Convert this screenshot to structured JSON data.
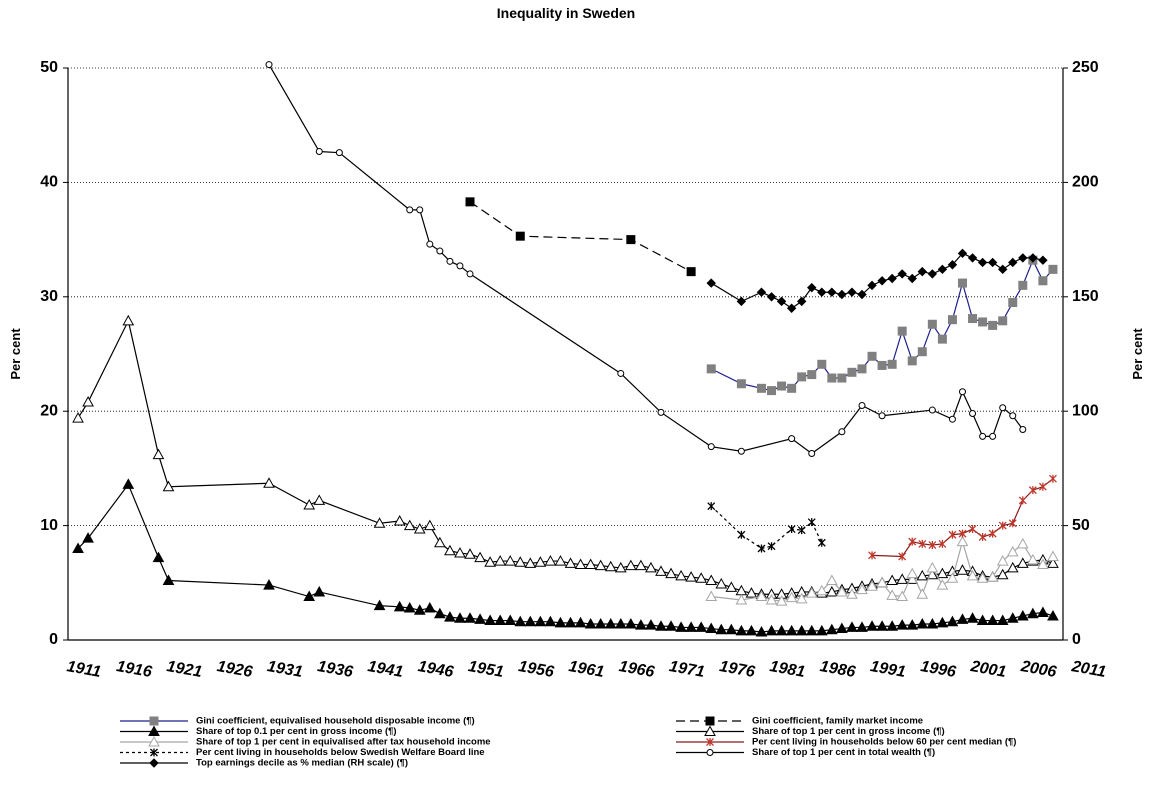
{
  "chart_data": {
    "type": "line",
    "title": "Inequality in Sweden",
    "y_label": "Per cent",
    "y2_label": "Per cent",
    "xlim": [
      1910,
      2009
    ],
    "xticks": [
      1911,
      1916,
      1921,
      1926,
      1931,
      1936,
      1941,
      1946,
      1951,
      1956,
      1961,
      1966,
      1971,
      1976,
      1981,
      1986,
      1991,
      1996,
      2001,
      2006,
      2011
    ],
    "ylim": [
      0,
      50
    ],
    "yticks": [
      0,
      10,
      20,
      30,
      40,
      50
    ],
    "y2lim": [
      0,
      250
    ],
    "y2ticks": [
      0,
      50,
      100,
      150,
      200,
      250
    ],
    "grid": true,
    "series": [
      {
        "name": "Gini coefficient,  equivalised household  disposable  income (¶)",
        "color": "#1f1f8f",
        "marker": "square",
        "marker_fill": "#808080",
        "marker_stroke": "#808080",
        "x": [
          1974,
          1977,
          1979,
          1980,
          1981,
          1982,
          1983,
          1984,
          1985,
          1986,
          1987,
          1988,
          1989,
          1990,
          1991,
          1992,
          1993,
          1994,
          1995,
          1996,
          1997,
          1998,
          1999,
          2000,
          2001,
          2002,
          2003,
          2004,
          2005,
          2006,
          2007,
          2008
        ],
        "values": [
          23.7,
          22.4,
          22.0,
          21.8,
          22.2,
          22.0,
          23.0,
          23.2,
          24.1,
          22.9,
          22.9,
          23.4,
          23.7,
          24.8,
          24.0,
          24.1,
          27.0,
          24.4,
          25.2,
          27.6,
          26.3,
          28.0,
          31.2,
          28.1,
          27.8,
          27.5,
          27.9,
          29.5,
          31.0,
          33.2,
          31.4,
          32.4
        ]
      },
      {
        "name": "Gini coefficient,  family market income",
        "color": "#000000",
        "dash": "9 5",
        "marker": "square",
        "marker_fill": "#000000",
        "marker_stroke": "#000000",
        "x": [
          1950,
          1955,
          1966,
          1972
        ],
        "values": [
          38.3,
          35.3,
          35.0,
          32.2
        ]
      },
      {
        "name": "Share of top 0.1 per cent in gross income  (¶)",
        "color": "#000000",
        "marker": "triangle",
        "marker_fill": "#000000",
        "marker_stroke": "#000000",
        "x": [
          1911,
          1912,
          1916,
          1919,
          1920,
          1930,
          1934,
          1935,
          1941,
          1943,
          1944,
          1945,
          1946,
          1947,
          1948,
          1949,
          1950,
          1951,
          1952,
          1953,
          1954,
          1955,
          1956,
          1957,
          1958,
          1959,
          1960,
          1961,
          1962,
          1963,
          1964,
          1965,
          1966,
          1967,
          1968,
          1969,
          1970,
          1971,
          1972,
          1973,
          1974,
          1975,
          1976,
          1977,
          1978,
          1979,
          1980,
          1981,
          1982,
          1983,
          1984,
          1985,
          1986,
          1987,
          1988,
          1989,
          1990,
          1991,
          1992,
          1993,
          1994,
          1995,
          1996,
          1997,
          1998,
          1999,
          2000,
          2001,
          2002,
          2003,
          2004,
          2005,
          2006,
          2007,
          2008
        ],
        "values": [
          8.0,
          8.9,
          13.6,
          7.2,
          5.2,
          4.8,
          3.8,
          4.2,
          3.0,
          2.9,
          2.8,
          2.6,
          2.8,
          2.3,
          2.0,
          1.9,
          1.9,
          1.8,
          1.7,
          1.7,
          1.7,
          1.6,
          1.6,
          1.6,
          1.6,
          1.5,
          1.5,
          1.5,
          1.4,
          1.4,
          1.4,
          1.4,
          1.4,
          1.3,
          1.3,
          1.2,
          1.2,
          1.1,
          1.1,
          1.1,
          1.0,
          0.9,
          0.9,
          0.8,
          0.8,
          0.7,
          0.8,
          0.8,
          0.8,
          0.8,
          0.8,
          0.8,
          0.9,
          1.0,
          1.1,
          1.1,
          1.2,
          1.2,
          1.2,
          1.3,
          1.3,
          1.4,
          1.4,
          1.5,
          1.6,
          1.8,
          1.9,
          1.7,
          1.7,
          1.7,
          1.9,
          2.1,
          2.3,
          2.4,
          2.1
        ]
      },
      {
        "name": "Share of top 1 per cent in gross income  (¶)",
        "color": "#000000",
        "marker": "triangle",
        "marker_fill": "#ffffff",
        "marker_stroke": "#000000",
        "x": [
          1911,
          1912,
          1916,
          1919,
          1920,
          1930,
          1934,
          1935,
          1941,
          1943,
          1944,
          1945,
          1946,
          1947,
          1948,
          1949,
          1950,
          1951,
          1952,
          1953,
          1954,
          1955,
          1956,
          1957,
          1958,
          1959,
          1960,
          1961,
          1962,
          1963,
          1964,
          1965,
          1966,
          1967,
          1968,
          1969,
          1970,
          1971,
          1972,
          1973,
          1974,
          1975,
          1976,
          1977,
          1978,
          1979,
          1980,
          1981,
          1982,
          1983,
          1984,
          1985,
          1986,
          1987,
          1988,
          1989,
          1990,
          1991,
          1992,
          1993,
          1994,
          1995,
          1996,
          1997,
          1998,
          1999,
          2000,
          2001,
          2002,
          2003,
          2004,
          2005,
          2006,
          2007,
          2008
        ],
        "values": [
          19.4,
          20.8,
          27.9,
          16.2,
          13.4,
          13.7,
          11.8,
          12.2,
          10.2,
          10.4,
          10.0,
          9.7,
          10.0,
          8.5,
          7.8,
          7.6,
          7.5,
          7.2,
          6.8,
          6.9,
          6.9,
          6.8,
          6.7,
          6.8,
          6.9,
          6.9,
          6.7,
          6.6,
          6.6,
          6.5,
          6.4,
          6.3,
          6.5,
          6.5,
          6.3,
          6.0,
          5.8,
          5.6,
          5.5,
          5.4,
          5.2,
          4.9,
          4.6,
          4.3,
          4.1,
          4.0,
          4.0,
          4.0,
          4.1,
          4.2,
          4.2,
          4.1,
          4.2,
          4.4,
          4.5,
          4.7,
          4.9,
          5.0,
          5.2,
          5.3,
          5.3,
          5.6,
          5.7,
          5.8,
          6.0,
          6.1,
          6.0,
          5.6,
          5.5,
          5.7,
          6.3,
          6.7,
          6.9,
          7.0,
          6.7
        ]
      },
      {
        "name": "Share of top 1 per cent in equivalised  after tax household income",
        "color": "#a6a6a6",
        "marker": "triangle",
        "marker_fill": "#ffffff",
        "marker_stroke": "#a6a6a6",
        "x": [
          1974,
          1977,
          1979,
          1980,
          1981,
          1982,
          1983,
          1984,
          1985,
          1986,
          1987,
          1988,
          1989,
          1990,
          1991,
          1992,
          1993,
          1994,
          1995,
          1996,
          1997,
          1998,
          1999,
          2000,
          2001,
          2002,
          2003,
          2004,
          2005,
          2006,
          2007,
          2008
        ],
        "values": [
          3.8,
          3.5,
          3.8,
          3.5,
          3.4,
          3.7,
          3.6,
          4.1,
          4.3,
          5.2,
          4.2,
          4.0,
          4.4,
          4.7,
          5.0,
          3.9,
          3.8,
          5.8,
          4.0,
          6.3,
          4.8,
          5.4,
          8.6,
          5.6,
          5.4,
          5.5,
          6.9,
          7.7,
          8.4,
          7.0,
          6.6,
          7.3
        ]
      },
      {
        "name": "Per cent living in households below 60 per cent median (¶)",
        "color": "#8b1a1a",
        "marker": "x",
        "marker_fill": "none",
        "marker_stroke": "#c0392b",
        "x": [
          1990,
          1993,
          1994,
          1995,
          1996,
          1997,
          1998,
          1999,
          2000,
          2001,
          2002,
          2003,
          2004,
          2005,
          2006,
          2007,
          2008
        ],
        "values": [
          7.4,
          7.3,
          8.6,
          8.4,
          8.3,
          8.4,
          9.2,
          9.3,
          9.7,
          9.0,
          9.3,
          10.0,
          10.2,
          12.2,
          13.1,
          13.4,
          14.1
        ]
      },
      {
        "name": "Per cent living in households below  Swedish  Welfare Board line",
        "color": "#000000",
        "dash": "3 3",
        "marker": "x",
        "marker_fill": "none",
        "marker_stroke": "#000000",
        "x": [
          1974,
          1977,
          1979,
          1980,
          1982,
          1983,
          1984,
          1985
        ],
        "values": [
          11.7,
          9.2,
          8.0,
          8.2,
          9.7,
          9.6,
          10.3,
          8.5
        ]
      },
      {
        "name": "Share of top 1 per cent in total wealth (¶)",
        "color": "#000000",
        "marker": "circle",
        "marker_fill": "#ffffff",
        "marker_stroke": "#000000",
        "x": [
          1930,
          1935,
          1937,
          1944,
          1945,
          1946,
          1947,
          1948,
          1949,
          1950,
          1965,
          1969,
          1974,
          1977,
          1982,
          1984,
          1987,
          1989,
          1991,
          1996,
          1998,
          1999,
          2000,
          2001,
          2002,
          2003,
          2004,
          2005
        ],
        "values": [
          50.3,
          42.7,
          42.6,
          37.6,
          37.6,
          34.6,
          34.0,
          33.1,
          32.7,
          32.0,
          23.3,
          19.9,
          16.9,
          16.5,
          17.6,
          16.3,
          18.2,
          20.5,
          19.6,
          20.1,
          19.3,
          21.7,
          19.8,
          17.8,
          17.8,
          20.3,
          19.6,
          18.4
        ]
      },
      {
        "name": "Top earnings decile as % median (RH scale) (¶)",
        "color": "#000000",
        "marker": "diamond",
        "marker_fill": "#000000",
        "marker_stroke": "#000000",
        "axis": "y2",
        "x": [
          1974,
          1977,
          1979,
          1980,
          1981,
          1982,
          1983,
          1984,
          1985,
          1986,
          1987,
          1988,
          1989,
          1990,
          1991,
          1992,
          1993,
          1994,
          1995,
          1996,
          1997,
          1998,
          1999,
          2000,
          2001,
          2002,
          2003,
          2004,
          2005,
          2006,
          2007
        ],
        "values": [
          156,
          148,
          152,
          150,
          148,
          145,
          148,
          154,
          152,
          152,
          151,
          152,
          151,
          155,
          157,
          158,
          160,
          158,
          161,
          160,
          162,
          164,
          169,
          167,
          165,
          165,
          162,
          165,
          167,
          167,
          166
        ]
      }
    ]
  }
}
